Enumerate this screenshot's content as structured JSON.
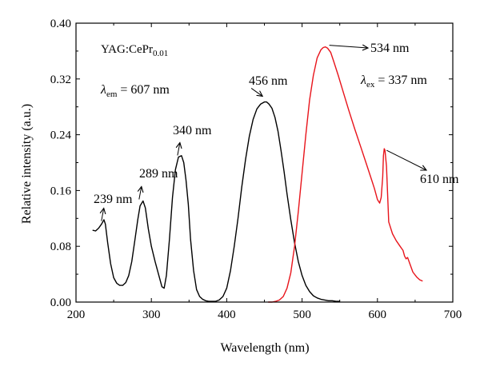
{
  "chart_data": {
    "type": "line",
    "xlabel": "Wavelength (nm)",
    "ylabel": "Relative intensity (a.u.)",
    "xlim": [
      200,
      700
    ],
    "ylim": [
      0,
      0.4
    ],
    "x_ticks": [
      200,
      300,
      400,
      500,
      600,
      700
    ],
    "y_ticks": [
      "0.00",
      "0.08",
      "0.16",
      "0.24",
      "0.32",
      "0.40"
    ],
    "grid": false,
    "sample": {
      "base": "YAG:CePr",
      "sub": "0.01"
    },
    "em_label": {
      "lambda": "λ",
      "sub": "em",
      "value": " = 607 nm"
    },
    "ex_label": {
      "lambda": "λ",
      "sub": "ex",
      "value": " = 337 nm"
    },
    "series": [
      {
        "color": "#000000",
        "x": [
          222,
          226,
          230,
          234,
          237,
          239,
          242,
          246,
          250,
          254,
          258,
          262,
          266,
          270,
          274,
          278,
          282,
          285,
          289,
          292,
          296,
          300,
          305,
          310,
          314,
          317,
          320,
          324,
          328,
          332,
          336,
          340,
          343,
          346,
          349,
          352,
          356,
          360,
          364,
          368,
          372,
          376,
          380,
          385,
          390,
          395,
          400,
          405,
          410,
          415,
          420,
          425,
          430,
          435,
          440,
          445,
          450,
          453,
          456,
          460,
          464,
          468,
          472,
          476,
          480,
          485,
          490,
          495,
          500,
          505,
          510,
          515,
          520,
          525,
          530,
          535,
          540,
          545,
          550
        ],
        "y": [
          0.103,
          0.102,
          0.106,
          0.112,
          0.118,
          0.112,
          0.085,
          0.055,
          0.035,
          0.027,
          0.024,
          0.024,
          0.028,
          0.038,
          0.058,
          0.088,
          0.118,
          0.138,
          0.145,
          0.135,
          0.105,
          0.08,
          0.058,
          0.038,
          0.022,
          0.02,
          0.038,
          0.09,
          0.15,
          0.19,
          0.208,
          0.21,
          0.2,
          0.175,
          0.14,
          0.09,
          0.045,
          0.018,
          0.008,
          0.004,
          0.002,
          0.001,
          0.001,
          0.001,
          0.003,
          0.008,
          0.02,
          0.045,
          0.08,
          0.12,
          0.165,
          0.205,
          0.238,
          0.262,
          0.277,
          0.284,
          0.287,
          0.287,
          0.284,
          0.278,
          0.265,
          0.245,
          0.218,
          0.188,
          0.155,
          0.118,
          0.085,
          0.058,
          0.038,
          0.024,
          0.015,
          0.009,
          0.006,
          0.004,
          0.003,
          0.002,
          0.002,
          0.001,
          0.001
        ]
      },
      {
        "color": "#e8141b",
        "x": [
          455,
          460,
          465,
          470,
          475,
          480,
          485,
          490,
          495,
          500,
          505,
          510,
          515,
          520,
          525,
          528,
          531,
          534,
          538,
          542,
          548,
          555,
          562,
          570,
          578,
          586,
          592,
          596,
          600,
          603,
          605,
          607,
          608,
          609,
          610,
          612,
          615,
          620,
          625,
          630,
          634,
          636,
          638,
          640,
          643,
          647,
          652,
          656,
          660
        ],
        "y": [
          0.0,
          0.0,
          0.001,
          0.003,
          0.008,
          0.02,
          0.042,
          0.08,
          0.13,
          0.185,
          0.24,
          0.29,
          0.325,
          0.35,
          0.362,
          0.365,
          0.366,
          0.364,
          0.358,
          0.345,
          0.325,
          0.3,
          0.275,
          0.248,
          0.222,
          0.196,
          0.176,
          0.163,
          0.147,
          0.142,
          0.15,
          0.18,
          0.21,
          0.22,
          0.218,
          0.195,
          0.115,
          0.098,
          0.088,
          0.08,
          0.074,
          0.066,
          0.062,
          0.064,
          0.055,
          0.043,
          0.036,
          0.032,
          0.03
        ]
      }
    ],
    "annotations": [
      {
        "text": "239 nm",
        "peak": [
          239,
          0.114
        ],
        "label": [
          117,
          254
        ],
        "arrow": "up"
      },
      {
        "text": "289 nm",
        "peak": [
          289,
          0.145
        ],
        "label": [
          174,
          222
        ],
        "arrow": "up"
      },
      {
        "text": "340 nm",
        "peak": [
          340,
          0.208
        ],
        "label": [
          216,
          168
        ],
        "arrow": "up"
      },
      {
        "text": "456 nm",
        "peak": [
          456,
          0.286
        ],
        "label": [
          311,
          106
        ],
        "arrow": "down-right"
      },
      {
        "text": "534 nm",
        "peak": [
          534,
          0.366
        ],
        "label": [
          463,
          65
        ],
        "arrow": "right"
      },
      {
        "text": "610 nm",
        "peak": [
          610,
          0.22
        ],
        "label": [
          525,
          229
        ],
        "arrow": "right-down"
      }
    ]
  }
}
